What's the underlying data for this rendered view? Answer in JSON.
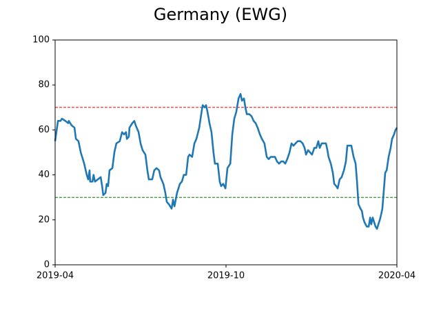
{
  "chart_data": {
    "type": "line",
    "title": "Germany (EWG)",
    "color": "#1f77b4",
    "xlim": [
      0,
      12
    ],
    "xticks": [
      {
        "value": 0,
        "label": "2019-04"
      },
      {
        "value": 6,
        "label": "2019-10"
      },
      {
        "value": 12,
        "label": "2020-04"
      }
    ],
    "ylim": [
      0,
      100
    ],
    "yticks": [
      0,
      20,
      40,
      60,
      80,
      100
    ],
    "reference_lines": [
      {
        "value": 70,
        "color": "#ff0000"
      },
      {
        "value": 30,
        "color": "#008000"
      }
    ],
    "x": [
      0,
      0.1,
      0.19,
      0.24,
      0.36,
      0.46,
      0.48,
      0.58,
      0.68,
      0.73,
      0.82,
      0.9,
      1.02,
      1.11,
      1.16,
      1.21,
      1.23,
      1.31,
      1.35,
      1.4,
      1.5,
      1.6,
      1.65,
      1.69,
      1.77,
      1.81,
      1.86,
      1.91,
      2.01,
      2.08,
      2.15,
      2.27,
      2.35,
      2.42,
      2.49,
      2.52,
      2.59,
      2.61,
      2.71,
      2.78,
      2.83,
      2.93,
      3.0,
      3.07,
      3.17,
      3.24,
      3.29,
      3.41,
      3.48,
      3.56,
      3.65,
      3.7,
      3.8,
      3.87,
      3.92,
      3.99,
      4.09,
      4.14,
      4.19,
      4.28,
      4.38,
      4.45,
      4.52,
      4.6,
      4.67,
      4.72,
      4.81,
      4.89,
      4.96,
      5.06,
      5.13,
      5.18,
      5.25,
      5.3,
      5.35,
      5.42,
      5.49,
      5.56,
      5.61,
      5.71,
      5.78,
      5.83,
      5.9,
      5.98,
      6.05,
      6.15,
      6.22,
      6.29,
      6.36,
      6.44,
      6.51,
      6.56,
      6.63,
      6.68,
      6.73,
      6.82,
      6.9,
      6.97,
      7.04,
      7.11,
      7.19,
      7.26,
      7.35,
      7.43,
      7.5,
      7.57,
      7.65,
      7.72,
      7.79,
      7.86,
      7.94,
      8.01,
      8.08,
      8.15,
      8.23,
      8.3,
      8.37,
      8.44,
      8.52,
      8.61,
      8.69,
      8.76,
      8.81,
      8.88,
      8.95,
      9.02,
      9.1,
      9.17,
      9.24,
      9.29,
      9.36,
      9.44,
      9.51,
      9.56,
      9.6,
      9.68,
      9.75,
      9.8,
      9.87,
      9.92,
      9.99,
      10.06,
      10.14,
      10.21,
      10.26,
      10.33,
      10.4,
      10.48,
      10.55,
      10.6,
      10.65,
      10.72,
      10.77,
      10.81,
      10.86,
      10.94,
      11.01,
      11.06,
      11.1,
      11.15,
      11.2,
      11.25,
      11.3,
      11.35,
      11.4,
      11.44,
      11.49,
      11.54,
      11.59,
      11.64,
      11.71,
      11.78,
      11.83,
      11.9,
      11.95,
      12
    ],
    "values": [
      55,
      64,
      64,
      65,
      64,
      63,
      64,
      62,
      61,
      56,
      55,
      50,
      45,
      40,
      38,
      42,
      37,
      37,
      40,
      37,
      38,
      39,
      35,
      31,
      32,
      36,
      35,
      42,
      43,
      50,
      54,
      55,
      59,
      58,
      59,
      56,
      57,
      61,
      63,
      64,
      62,
      59,
      54,
      51,
      49,
      42,
      38,
      38,
      42,
      43,
      42,
      39,
      36,
      32,
      28,
      27,
      25,
      29,
      26,
      32,
      36,
      37,
      40,
      40,
      48,
      49,
      48,
      54,
      56,
      61,
      67,
      71,
      70,
      71,
      68,
      63,
      59,
      50,
      45,
      45,
      37,
      35,
      36,
      34,
      43,
      45,
      58,
      65,
      68,
      74,
      76,
      73,
      74,
      70,
      67,
      67,
      66,
      64,
      63,
      61,
      58,
      56,
      54,
      48,
      47,
      48,
      48,
      48,
      46,
      45,
      46,
      46,
      45,
      47,
      50,
      54,
      53,
      54,
      55,
      55,
      54,
      52,
      49,
      51,
      50,
      49,
      52,
      52,
      55,
      52,
      54,
      54,
      54,
      51,
      48,
      45,
      41,
      36,
      35,
      34,
      38,
      39,
      42,
      46,
      53,
      53,
      53,
      48,
      45,
      37,
      27,
      25,
      24,
      21,
      19,
      17,
      17,
      21,
      18,
      21,
      19,
      17,
      16,
      18,
      20,
      22,
      25,
      33,
      41,
      42,
      48,
      52,
      56,
      58,
      60,
      61
    ]
  }
}
